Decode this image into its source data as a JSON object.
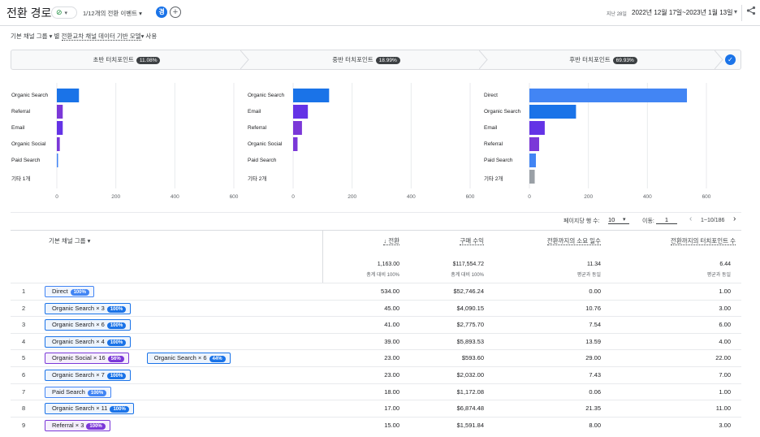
{
  "header": {
    "title": "전환 경로",
    "check_pill": "⊘",
    "events_label": "1/12개의 전환 이벤트 ▾",
    "compare_letter": "경",
    "add_compare": "+",
    "date_prefix": "지난 28일",
    "date_range": "2022년 12월 17일~2023년 1월 13일",
    "date_caret": "▾",
    "share_icon": "share-icon"
  },
  "filter": {
    "dimension": "기본 채널 그룹 ▾",
    "connector": "별",
    "model": "전환교차 채널 데이터 기반 모델",
    "model_caret": "▾",
    "suffix": "사용"
  },
  "stages": [
    {
      "label": "초반 터치포인트",
      "pct": "11.08%"
    },
    {
      "label": "중반 터치포인트",
      "pct": "18.99%"
    },
    {
      "label": "후반 터치포인트",
      "pct": "69.93%"
    }
  ],
  "stage_check": "✓",
  "chart_data": [
    {
      "type": "bar",
      "orientation": "horizontal",
      "categories": [
        "Organic Search",
        "Referral",
        "Email",
        "Organic Social",
        "Paid Search",
        "기타 1개"
      ],
      "values": [
        75,
        20,
        20,
        10,
        3,
        0
      ],
      "xlim": [
        0,
        600
      ],
      "xticks": [
        "0",
        "200",
        "400",
        "600"
      ],
      "colors": [
        "#1a73e8",
        "#7b38d8",
        "#6433e6",
        "#7b38d8",
        "#4285f4",
        "#9aa0a6"
      ]
    },
    {
      "type": "bar",
      "orientation": "horizontal",
      "categories": [
        "Organic Search",
        "Email",
        "Referral",
        "Organic Social",
        "Paid Search",
        "기타 2개"
      ],
      "values": [
        122,
        50,
        30,
        15,
        0,
        0
      ],
      "xlim": [
        0,
        600
      ],
      "xticks": [
        "0",
        "200",
        "400",
        "600"
      ],
      "colors": [
        "#1a73e8",
        "#6433e6",
        "#7b38d8",
        "#7b38d8",
        "#4285f4",
        "#9aa0a6"
      ]
    },
    {
      "type": "bar",
      "orientation": "horizontal",
      "categories": [
        "Direct",
        "Organic Search",
        "Email",
        "Referral",
        "Paid Search",
        "기타 2개"
      ],
      "values": [
        534,
        158,
        52,
        33,
        22,
        18
      ],
      "xlim": [
        0,
        600
      ],
      "xticks": [
        "0",
        "200",
        "400",
        "600"
      ],
      "colors": [
        "#4285f4",
        "#1a73e8",
        "#6433e6",
        "#7b38d8",
        "#4285f4",
        "#9aa0a6"
      ]
    }
  ],
  "table_controls": {
    "rows_label": "페이지당 행 수:",
    "rows_value": "10",
    "rows_caret": "▾",
    "goto_label": "이동:",
    "goto_value": "1",
    "prev": "‹",
    "range": "1~10/186",
    "next": "›"
  },
  "columns": {
    "dimension": "기본 채널 그룹 ▾",
    "conversions": "↓ 전환",
    "revenue": "구매 수익",
    "days": "전환까지의 소요 일수",
    "touchpoints": "전환까지의 터치포인트 수"
  },
  "totals": {
    "conversions": "1,163.00",
    "conversions_sub": "총계 대비 100%",
    "revenue": "$117,554.72",
    "revenue_sub": "총계 대비 100%",
    "days": "11.34",
    "days_sub": "평균과 동일",
    "touchpoints": "6.44",
    "touchpoints_sub": "평균과 동일"
  },
  "rows": [
    {
      "n": "1",
      "chips": [
        {
          "label": "Direct",
          "pct": "100%",
          "color": "#4285f4"
        }
      ],
      "conv": "534.00",
      "rev": "$52,746.24",
      "days": "0.00",
      "tp": "1.00"
    },
    {
      "n": "2",
      "chips": [
        {
          "label": "Organic Search × 3",
          "pct": "100%",
          "color": "#1a73e8"
        }
      ],
      "conv": "45.00",
      "rev": "$4,090.15",
      "days": "10.76",
      "tp": "3.00"
    },
    {
      "n": "3",
      "chips": [
        {
          "label": "Organic Search × 6",
          "pct": "100%",
          "color": "#1a73e8"
        }
      ],
      "conv": "41.00",
      "rev": "$2,775.70",
      "days": "7.54",
      "tp": "6.00"
    },
    {
      "n": "4",
      "chips": [
        {
          "label": "Organic Search × 4",
          "pct": "100%",
          "color": "#1a73e8"
        }
      ],
      "conv": "39.00",
      "rev": "$5,893.53",
      "days": "13.59",
      "tp": "4.00"
    },
    {
      "n": "5",
      "chips": [
        {
          "label": "Organic Social × 16",
          "pct": "56%",
          "color": "#7b38d8"
        },
        {
          "label": "Organic Search × 6",
          "pct": "44%",
          "color": "#1a73e8"
        }
      ],
      "conv": "23.00",
      "rev": "$593.60",
      "days": "29.00",
      "tp": "22.00"
    },
    {
      "n": "6",
      "chips": [
        {
          "label": "Organic Search × 7",
          "pct": "100%",
          "color": "#1a73e8"
        }
      ],
      "conv": "23.00",
      "rev": "$2,032.00",
      "days": "7.43",
      "tp": "7.00"
    },
    {
      "n": "7",
      "chips": [
        {
          "label": "Paid Search",
          "pct": "100%",
          "color": "#4285f4"
        }
      ],
      "conv": "18.00",
      "rev": "$1,172.08",
      "days": "0.06",
      "tp": "1.00"
    },
    {
      "n": "8",
      "chips": [
        {
          "label": "Organic Search × 11",
          "pct": "100%",
          "color": "#1a73e8"
        }
      ],
      "conv": "17.00",
      "rev": "$6,874.48",
      "days": "21.35",
      "tp": "11.00"
    },
    {
      "n": "9",
      "chips": [
        {
          "label": "Referral × 3",
          "pct": "100%",
          "color": "#7b38d8"
        }
      ],
      "conv": "15.00",
      "rev": "$1,591.84",
      "days": "8.00",
      "tp": "3.00"
    }
  ]
}
